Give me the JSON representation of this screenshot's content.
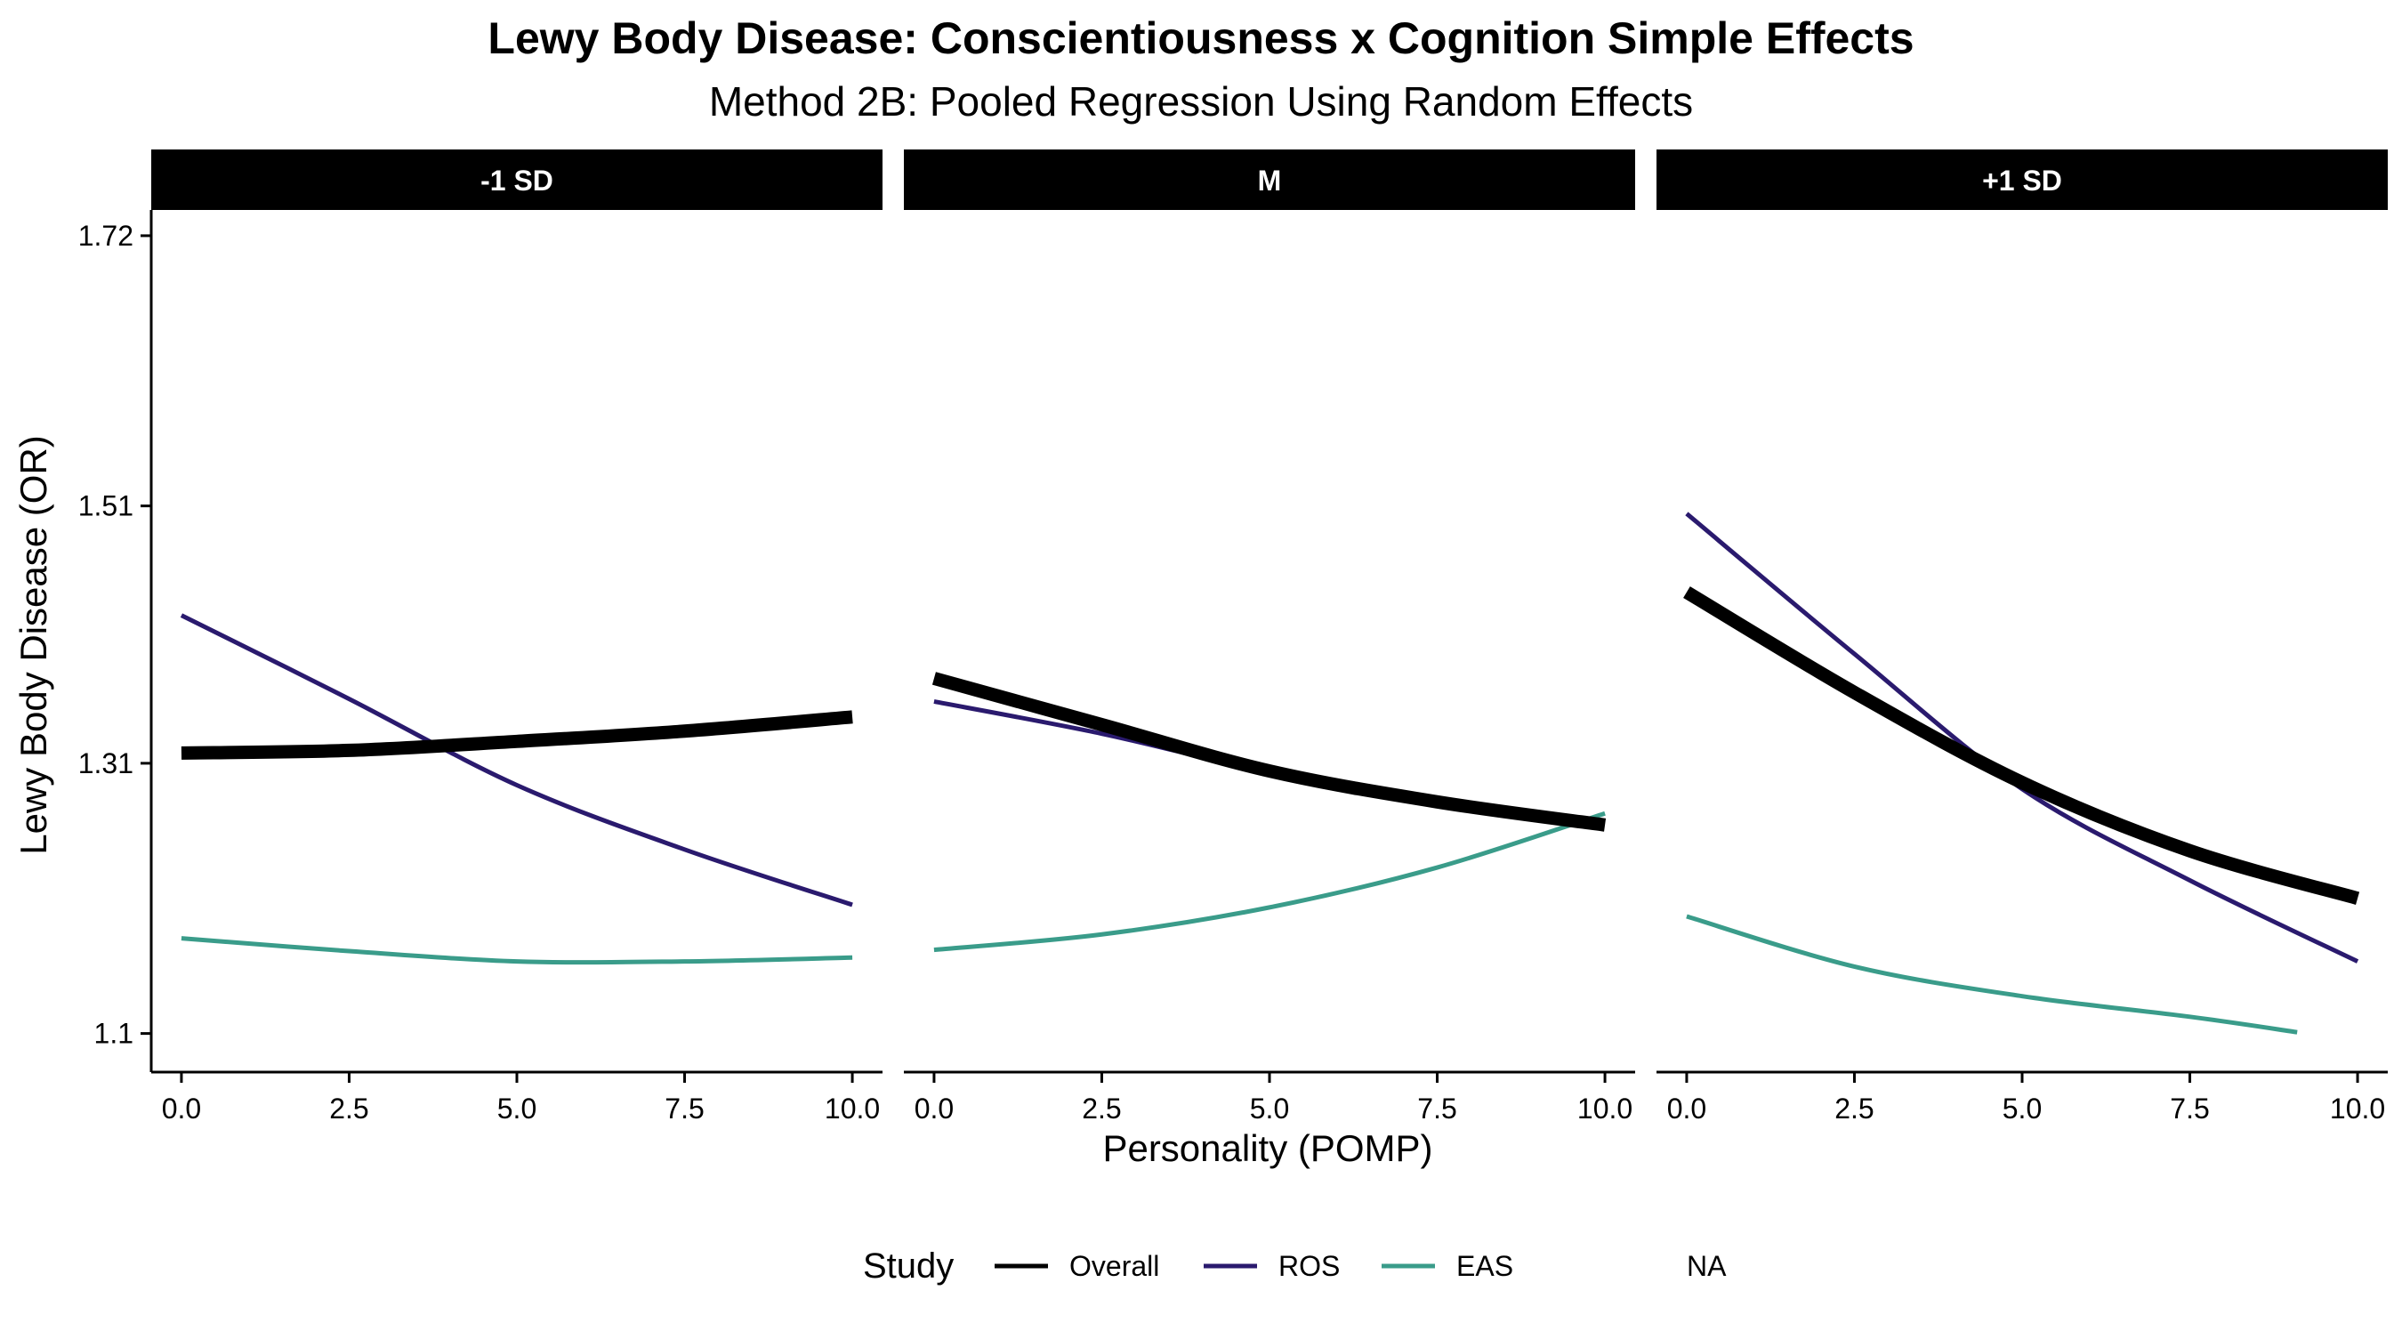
{
  "chart_data": {
    "type": "line",
    "title": "Lewy Body Disease: Conscientiousness x Cognition Simple Effects",
    "subtitle": "Method 2B: Pooled Regression Using Random Effects",
    "xlabel": "Personality (POMP)",
    "ylabel": "Lewy Body Disease (OR)",
    "xlim": [
      -0.45,
      10.45
    ],
    "ylim": [
      1.07,
      1.74
    ],
    "x_ticks": [
      0,
      2.5,
      5,
      7.5,
      10
    ],
    "x_tick_labels": [
      "0.0",
      "2.5",
      "5.0",
      "7.5",
      "10.0"
    ],
    "y_ticks": [
      1.1,
      1.31,
      1.51,
      1.72
    ],
    "y_tick_labels": [
      "1.1",
      "1.31",
      "1.51",
      "1.72"
    ],
    "grid": false,
    "legend": {
      "title": "Study",
      "position": "bottom",
      "entries": [
        {
          "label": "Overall",
          "color": "#000000"
        },
        {
          "label": "ROS",
          "color": "#2a1a6e"
        },
        {
          "label": "EAS",
          "color": "#3a9c8a"
        },
        {
          "label": "NA",
          "color": null
        }
      ]
    },
    "panels": [
      {
        "label": "-1 SD",
        "series": [
          {
            "name": "Overall",
            "color": "#000000",
            "x": [
              0,
              2.5,
              5,
              7.5,
              10
            ],
            "values": [
              1.318,
              1.32,
              1.327,
              1.335,
              1.346
            ]
          },
          {
            "name": "ROS",
            "color": "#2a1a6e",
            "x": [
              0,
              2.5,
              5,
              7.5,
              10
            ],
            "values": [
              1.425,
              1.36,
              1.293,
              1.243,
              1.2
            ]
          },
          {
            "name": "EAS",
            "color": "#3a9c8a",
            "x": [
              0,
              2.5,
              5,
              7.5,
              10
            ],
            "values": [
              1.174,
              1.164,
              1.156,
              1.156,
              1.159
            ]
          }
        ]
      },
      {
        "label": "M",
        "series": [
          {
            "name": "Overall",
            "color": "#000000",
            "x": [
              0,
              2.5,
              5,
              7.5,
              10
            ],
            "values": [
              1.376,
              1.34,
              1.304,
              1.28,
              1.262
            ]
          },
          {
            "name": "ROS",
            "color": "#2a1a6e",
            "x": [
              0,
              2.5,
              5,
              7.5,
              10
            ],
            "values": [
              1.358,
              1.333,
              1.303,
              1.282,
              1.264
            ]
          },
          {
            "name": "EAS",
            "color": "#3a9c8a",
            "x": [
              0,
              2.5,
              5,
              7.5,
              10
            ],
            "values": [
              1.165,
              1.177,
              1.198,
              1.229,
              1.271
            ]
          }
        ]
      },
      {
        "label": "+1 SD",
        "series": [
          {
            "name": "Overall",
            "color": "#000000",
            "x": [
              0,
              2.5,
              5,
              7.5,
              10
            ],
            "values": [
              1.443,
              1.365,
              1.295,
              1.242,
              1.205
            ]
          },
          {
            "name": "ROS",
            "color": "#2a1a6e",
            "x": [
              0,
              2.5,
              5,
              7.5,
              10
            ],
            "values": [
              1.504,
              1.395,
              1.29,
              1.219,
              1.156
            ]
          },
          {
            "name": "EAS",
            "color": "#3a9c8a",
            "x": [
              0,
              2.5,
              5,
              7.5,
              9.1
            ],
            "values": [
              1.191,
              1.152,
              1.129,
              1.113,
              1.101
            ]
          }
        ]
      }
    ]
  }
}
